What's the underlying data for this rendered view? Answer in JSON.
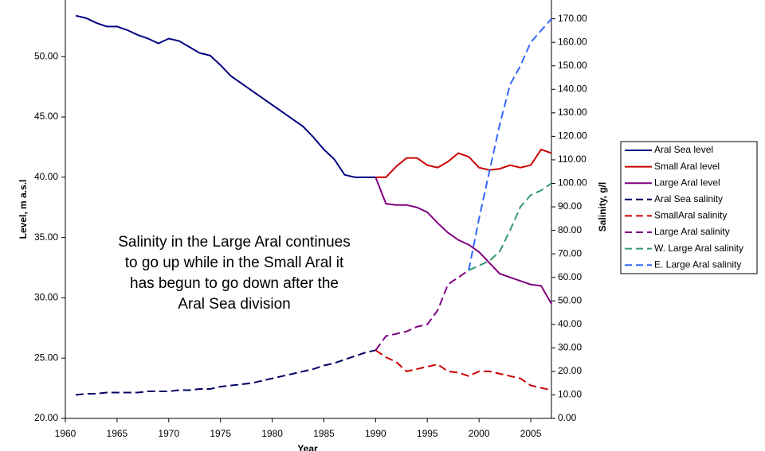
{
  "chart_data": {
    "type": "line",
    "x_label": "Year",
    "y_label": "Level, m a.s.l",
    "y2_label": "Salinity, g/l",
    "annotation": [
      "Salinity in the Large Aral continues",
      "to go up while in the Small Aral it",
      "has begun to go down after the",
      "Aral Sea division"
    ],
    "x": [
      1961,
      1962,
      1963,
      1964,
      1965,
      1966,
      1967,
      1968,
      1969,
      1970,
      1971,
      1972,
      1973,
      1974,
      1975,
      1976,
      1977,
      1978,
      1979,
      1980,
      1981,
      1982,
      1983,
      1984,
      1985,
      1986,
      1987,
      1988,
      1989,
      1990,
      1991,
      1992,
      1993,
      1994,
      1995,
      1996,
      1997,
      1998,
      1999,
      2000,
      2001,
      2002,
      2003,
      2004,
      2005,
      2006,
      2007
    ],
    "xlim": [
      1960,
      2007
    ],
    "xticks": [
      1960,
      1965,
      1970,
      1975,
      1980,
      1985,
      1990,
      1995,
      2000,
      2005
    ],
    "ylim": [
      20,
      54.7
    ],
    "yticks": [
      {
        "value": 20,
        "label": "20.00"
      },
      {
        "value": 25,
        "label": "25.00"
      },
      {
        "value": 30,
        "label": "30.00"
      },
      {
        "value": 35,
        "label": "35.00"
      },
      {
        "value": 40,
        "label": "40.00"
      },
      {
        "value": 45,
        "label": "45.00"
      },
      {
        "value": 50,
        "label": "50.00"
      }
    ],
    "y2lim": [
      0,
      178
    ],
    "y2ticks": [
      {
        "value": 0,
        "label": "0.00"
      },
      {
        "value": 10,
        "label": "10.00"
      },
      {
        "value": 20,
        "label": "20.00"
      },
      {
        "value": 30,
        "label": "30.00"
      },
      {
        "value": 40,
        "label": "40.00"
      },
      {
        "value": 50,
        "label": "50.00"
      },
      {
        "value": 60,
        "label": "60.00"
      },
      {
        "value": 70,
        "label": "70.00"
      },
      {
        "value": 80,
        "label": "80.00"
      },
      {
        "value": 90,
        "label": "90.00"
      },
      {
        "value": 100,
        "label": "100.00"
      },
      {
        "value": 110,
        "label": "110.00"
      },
      {
        "value": 120,
        "label": "120.00"
      },
      {
        "value": 130,
        "label": "130.00"
      },
      {
        "value": 140,
        "label": "140.00"
      },
      {
        "value": 150,
        "label": "150.00"
      },
      {
        "value": 160,
        "label": "160.00"
      },
      {
        "value": 170,
        "label": "170.00"
      }
    ],
    "grid": false,
    "legend": "right",
    "series": [
      {
        "name": "Aral Sea level",
        "color": "#000080",
        "dashed": false,
        "values": [
          53.4,
          53.2,
          52.8,
          52.5,
          52.5,
          52.2,
          51.8,
          51.5,
          51.1,
          51.5,
          51.3,
          50.8,
          50.3,
          50.1,
          49.3,
          48.4,
          47.8,
          47.2,
          46.6,
          46.0,
          45.4,
          44.8,
          44.2,
          43.3,
          42.3,
          41.5,
          40.2,
          40.0,
          40.0,
          40.0,
          null,
          null,
          null,
          null,
          null,
          null,
          null,
          null,
          null,
          null,
          null,
          null,
          null,
          null,
          null,
          null,
          null
        ]
      },
      {
        "name": "Small Aral level",
        "color": "#cc0000",
        "dashed": false,
        "values": [
          null,
          null,
          null,
          null,
          null,
          null,
          null,
          null,
          null,
          null,
          null,
          null,
          null,
          null,
          null,
          null,
          null,
          null,
          null,
          null,
          null,
          null,
          null,
          null,
          null,
          null,
          null,
          null,
          null,
          40.0,
          40.0,
          40.9,
          41.6,
          41.6,
          41.0,
          40.8,
          41.3,
          42.0,
          41.7,
          40.8,
          40.6,
          40.7,
          41.0,
          40.8,
          41.0,
          42.3,
          42.0
        ]
      },
      {
        "name": "Large Aral level",
        "color": "#800080",
        "dashed": false,
        "values": [
          null,
          null,
          null,
          null,
          null,
          null,
          null,
          null,
          null,
          null,
          null,
          null,
          null,
          null,
          null,
          null,
          null,
          null,
          null,
          null,
          null,
          null,
          null,
          null,
          null,
          null,
          null,
          null,
          null,
          40.0,
          37.8,
          37.7,
          37.7,
          37.5,
          37.1,
          36.2,
          35.4,
          34.8,
          34.4,
          33.8,
          32.9,
          32.0,
          31.7,
          31.4,
          31.1,
          31.0,
          29.5
        ]
      },
      {
        "name": "Aral Sea salinity",
        "color": "#000066",
        "dashed": true,
        "axis": "y2",
        "values": [
          10,
          10.5,
          10.5,
          11,
          11,
          11,
          11,
          11.5,
          11.5,
          11.5,
          12,
          12,
          12.5,
          12.5,
          13.5,
          14,
          14.5,
          15,
          16,
          17,
          18,
          19,
          20,
          21,
          22.5,
          23.5,
          25,
          26.5,
          28,
          29,
          null,
          null,
          null,
          null,
          null,
          null,
          null,
          null,
          null,
          null,
          null,
          null,
          null,
          null,
          null,
          null,
          null
        ]
      },
      {
        "name": "SmallAral salinity",
        "color": "#cc0000",
        "dashed": true,
        "axis": "y2",
        "values": [
          null,
          null,
          null,
          null,
          null,
          null,
          null,
          null,
          null,
          null,
          null,
          null,
          null,
          null,
          null,
          null,
          null,
          null,
          null,
          null,
          null,
          null,
          null,
          null,
          null,
          null,
          null,
          null,
          null,
          29,
          26,
          24,
          20,
          21,
          22,
          23,
          20,
          19.5,
          18,
          20,
          20,
          19,
          18,
          17,
          14,
          13,
          12
        ]
      },
      {
        "name": "Large Aral salinity",
        "color": "#800080",
        "dashed": true,
        "axis": "y2",
        "values": [
          null,
          null,
          null,
          null,
          null,
          null,
          null,
          null,
          null,
          null,
          null,
          null,
          null,
          null,
          null,
          null,
          null,
          null,
          null,
          null,
          null,
          null,
          null,
          null,
          null,
          null,
          null,
          null,
          null,
          29,
          35,
          36,
          37,
          39,
          40,
          46,
          57,
          60,
          63,
          null,
          null,
          null,
          null,
          null,
          null,
          null,
          null
        ]
      },
      {
        "name": "W. Large Aral salinity",
        "color": "#339977",
        "dashed": true,
        "axis": "y2",
        "values": [
          null,
          null,
          null,
          null,
          null,
          null,
          null,
          null,
          null,
          null,
          null,
          null,
          null,
          null,
          null,
          null,
          null,
          null,
          null,
          null,
          null,
          null,
          null,
          null,
          null,
          null,
          null,
          null,
          null,
          null,
          null,
          null,
          null,
          null,
          null,
          null,
          null,
          null,
          63,
          65,
          67,
          71,
          80,
          90,
          95,
          97,
          100
        ]
      },
      {
        "name": "E. Large Aral salinity",
        "color": "#3366ff",
        "dashed": true,
        "axis": "y2",
        "values": [
          null,
          null,
          null,
          null,
          null,
          null,
          null,
          null,
          null,
          null,
          null,
          null,
          null,
          null,
          null,
          null,
          null,
          null,
          null,
          null,
          null,
          null,
          null,
          null,
          null,
          null,
          null,
          null,
          null,
          null,
          null,
          null,
          null,
          null,
          null,
          null,
          null,
          null,
          63,
          85,
          105,
          125,
          142,
          150,
          160,
          165,
          170
        ]
      }
    ]
  }
}
